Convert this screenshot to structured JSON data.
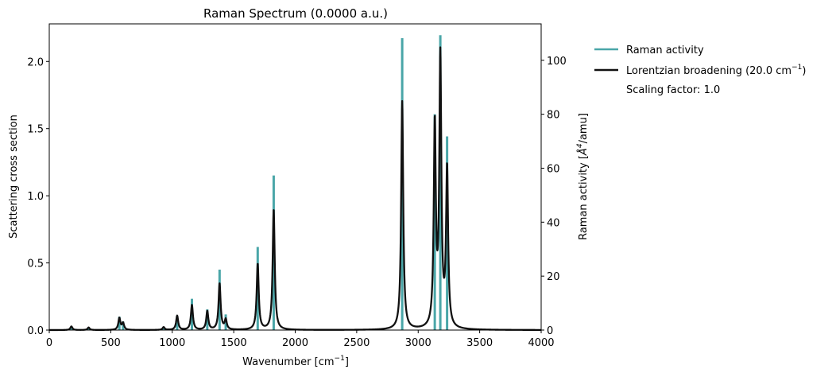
{
  "chart_data": {
    "type": "bar+line",
    "title": "Raman Spectrum (0.0000 a.u.)",
    "xlabel": "Wavenumber [cm",
    "xlabel_sup": "−1",
    "xlabel_tail": "]",
    "ylabel_left": "Scattering cross section",
    "ylabel_right": "Raman activity [",
    "ylabel_right_unit": "Å",
    "ylabel_right_sup": "4",
    "ylabel_right_tail": "/amu]",
    "xlim": [
      0,
      4000
    ],
    "ylim_left": [
      0,
      2.28
    ],
    "ylim_right": [
      0,
      113.5
    ],
    "x_ticks": [
      0,
      500,
      1000,
      1500,
      2000,
      2500,
      3000,
      3500,
      4000
    ],
    "y_left_ticks": [
      0.0,
      0.5,
      1.0,
      1.5,
      2.0
    ],
    "y_left_tick_labels": [
      "0.0",
      "0.5",
      "1.0",
      "1.5",
      "2.0"
    ],
    "y_right_ticks": [
      0,
      20,
      40,
      60,
      80,
      100
    ],
    "y_right_tick_labels": [
      "0",
      "20",
      "40",
      "60",
      "80",
      "100"
    ],
    "fwhm": 20.0,
    "legend": {
      "placement": "outside-top-right",
      "raman_label": "Raman activity",
      "lorentz_label": "Lorentzian broadening (20.0 cm",
      "lorentz_sup": "−1",
      "lorentz_tail": ")",
      "scaling_label": "Scaling factor: 1.0"
    },
    "series": [
      {
        "name": "Raman activity",
        "kind": "stick",
        "axis": "right",
        "color": "#4aa6a8",
        "points": [
          {
            "x": 180,
            "y": 1.2
          },
          {
            "x": 320,
            "y": 0.9
          },
          {
            "x": 570,
            "y": 5.0
          },
          {
            "x": 600,
            "y": 3.2
          },
          {
            "x": 930,
            "y": 1.0
          },
          {
            "x": 1040,
            "y": 5.2
          },
          {
            "x": 1160,
            "y": 11.6
          },
          {
            "x": 1285,
            "y": 7.7
          },
          {
            "x": 1385,
            "y": 22.4
          },
          {
            "x": 1435,
            "y": 5.8
          },
          {
            "x": 1695,
            "y": 30.8
          },
          {
            "x": 1825,
            "y": 57.3
          },
          {
            "x": 2870,
            "y": 108.2
          },
          {
            "x": 3135,
            "y": 80.0
          },
          {
            "x": 3180,
            "y": 109.3
          },
          {
            "x": 3235,
            "y": 71.8
          }
        ]
      },
      {
        "name": "Lorentzian broadening (20.0 cm−1)",
        "kind": "line",
        "axis": "left",
        "color": "#111111",
        "peaks": [
          {
            "x": 180,
            "h": 0.027
          },
          {
            "x": 320,
            "h": 0.019
          },
          {
            "x": 570,
            "h": 0.088
          },
          {
            "x": 600,
            "h": 0.05
          },
          {
            "x": 930,
            "h": 0.021
          },
          {
            "x": 1040,
            "h": 0.106
          },
          {
            "x": 1160,
            "h": 0.185
          },
          {
            "x": 1285,
            "h": 0.139
          },
          {
            "x": 1385,
            "h": 0.345
          },
          {
            "x": 1435,
            "h": 0.073
          },
          {
            "x": 1695,
            "h": 0.491
          },
          {
            "x": 1825,
            "h": 0.898
          },
          {
            "x": 2870,
            "h": 1.7
          },
          {
            "x": 3135,
            "h": 1.498
          },
          {
            "x": 3180,
            "h": 1.995
          },
          {
            "x": 3235,
            "h": 1.171
          }
        ]
      }
    ]
  }
}
